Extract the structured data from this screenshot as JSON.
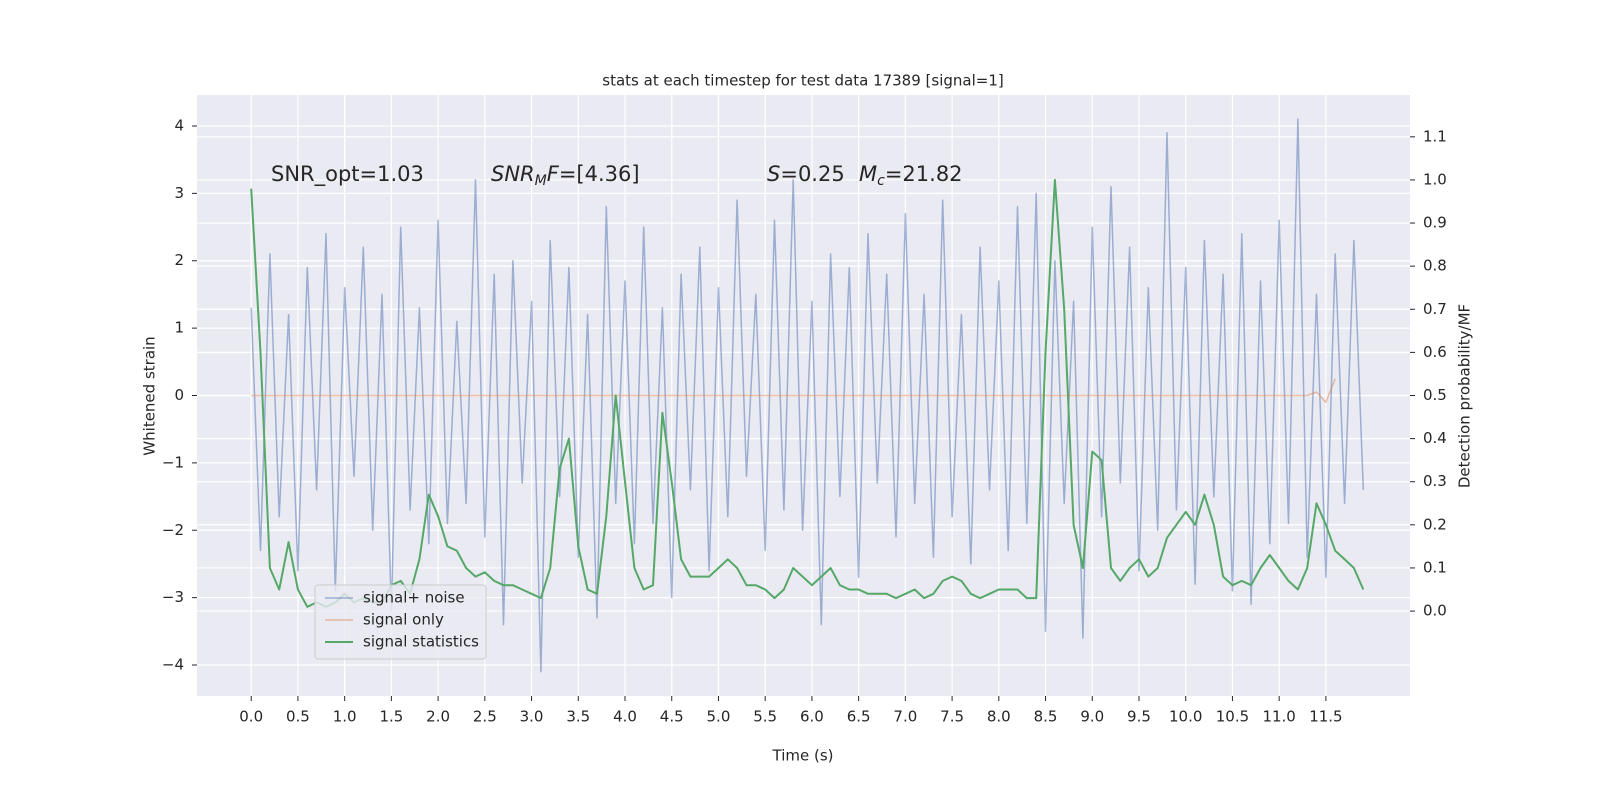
{
  "chart_data": {
    "type": "line",
    "title": "stats at each timestep for test data 17389 [signal=1]",
    "xlabel": "Time (s)",
    "ylabel": "Whitened strain",
    "y2label": "Detection probability/MF",
    "annotations": [
      "SNR_opt=1.03",
      {
        "main": "SNR",
        "sub": "M",
        "after": "F",
        "tail": "=[4.36]"
      },
      {
        "main": "S",
        "tail": "=0.25"
      },
      {
        "main": "M",
        "sub": "c",
        "tail": "=21.82"
      }
    ],
    "legend": "lower left",
    "grid": true,
    "xlim": [
      -0.58,
      12.4
    ],
    "ylim": [
      -4.46,
      4.46
    ],
    "y2lim": [
      -0.197,
      1.197
    ],
    "xticks": [
      {
        "value": 0,
        "label": "0.0"
      },
      0.5,
      {
        "value": 1,
        "label": "1.0"
      },
      1.5,
      {
        "value": 2,
        "label": "2.0"
      },
      2.5,
      {
        "value": 3,
        "label": "3.0"
      },
      3.5,
      {
        "value": 4,
        "label": "4.0"
      },
      4.5,
      {
        "value": 5,
        "label": "5.0"
      },
      5.5,
      {
        "value": 6,
        "label": "6.0"
      },
      6.5,
      {
        "value": 7,
        "label": "7.0"
      },
      7.5,
      {
        "value": 8,
        "label": "8.0"
      },
      8.5,
      {
        "value": 9,
        "label": "9.0"
      },
      9.5,
      {
        "value": 10,
        "label": "10.0"
      },
      10.5,
      {
        "value": 11,
        "label": "11.0"
      },
      11.5
    ],
    "yticks": [
      {
        "value": -4,
        "label": "−4"
      },
      {
        "value": -3,
        "label": "−3"
      },
      {
        "value": -2,
        "label": "−2"
      },
      {
        "value": -1,
        "label": "−1"
      },
      0,
      1,
      2,
      3,
      4
    ],
    "y2ticks": [
      {
        "value": 0,
        "label": "0.0"
      },
      0.1,
      0.2,
      0.3,
      0.4,
      0.5,
      0.6,
      0.7,
      0.8,
      0.9,
      {
        "value": 1,
        "label": "1.0"
      },
      1.1
    ],
    "x": [
      0,
      0.1,
      0.2,
      0.3,
      0.4,
      0.5,
      0.6,
      0.7,
      0.8,
      0.9,
      1,
      1.1,
      1.2,
      1.3,
      1.4,
      1.5,
      1.6,
      1.7,
      1.8,
      1.9,
      2,
      2.1,
      2.2,
      2.3,
      2.4,
      2.5,
      2.6,
      2.7,
      2.8,
      2.9,
      3,
      3.1,
      3.2,
      3.3,
      3.4,
      3.5,
      3.6,
      3.7,
      3.8,
      3.9,
      4,
      4.1,
      4.2,
      4.3,
      4.4,
      4.5,
      4.6,
      4.7,
      4.8,
      4.9,
      5,
      5.1,
      5.2,
      5.3,
      5.4,
      5.5,
      5.6,
      5.7,
      5.8,
      5.9,
      6,
      6.1,
      6.2,
      6.3,
      6.4,
      6.5,
      6.6,
      6.7,
      6.8,
      6.9,
      7,
      7.1,
      7.2,
      7.3,
      7.4,
      7.5,
      7.6,
      7.7,
      7.8,
      7.9,
      8,
      8.1,
      8.2,
      8.3,
      8.4,
      8.5,
      8.6,
      8.7,
      8.8,
      8.9,
      9,
      9.1,
      9.2,
      9.3,
      9.4,
      9.5,
      9.6,
      9.7,
      9.8,
      9.9,
      10,
      10.1,
      10.2,
      10.3,
      10.4,
      10.5,
      10.6,
      10.7,
      10.8,
      10.9,
      11,
      11.1,
      11.2,
      11.3,
      11.4,
      11.5,
      11.6,
      11.7,
      11.8,
      11.9
    ],
    "series": [
      {
        "name": "signal+ noise",
        "color": "#4c72b0",
        "values": [
          1.3,
          -2.3,
          2.1,
          -1.8,
          1.2,
          -2.6,
          1.9,
          -1.4,
          2.4,
          -2.9,
          1.6,
          -1.2,
          2.2,
          -2.0,
          1.5,
          -3.2,
          2.5,
          -1.7,
          1.3,
          -2.2,
          2.6,
          -1.9,
          1.1,
          -1.6,
          3.2,
          -2.1,
          1.8,
          -3.4,
          2.0,
          -1.3,
          1.4,
          -4.1,
          2.3,
          -1.5,
          1.9,
          -2.4,
          1.2,
          -3.3,
          2.8,
          -1.6,
          1.7,
          -2.2,
          2.5,
          -1.9,
          1.3,
          -3.0,
          1.8,
          -1.4,
          2.2,
          -2.6,
          1.6,
          -1.8,
          2.9,
          -1.2,
          1.5,
          -2.3,
          2.6,
          -1.7,
          3.2,
          -2.0,
          1.4,
          -3.4,
          2.1,
          -1.5,
          1.9,
          -2.7,
          2.4,
          -1.3,
          1.8,
          -2.1,
          2.7,
          -1.6,
          1.5,
          -2.4,
          2.9,
          -1.8,
          1.2,
          -2.5,
          2.2,
          -1.4,
          1.7,
          -2.3,
          2.8,
          -1.9,
          3.0,
          -3.5,
          2.0,
          -1.6,
          1.4,
          -3.6,
          2.5,
          -1.8,
          3.1,
          -1.3,
          2.2,
          -2.6,
          1.6,
          -2.0,
          3.9,
          -1.7,
          1.9,
          -2.8,
          2.3,
          -1.5,
          1.8,
          -2.9,
          2.4,
          -3.1,
          1.7,
          -2.2,
          2.6,
          -1.9,
          4.1,
          -2.4,
          1.5,
          -2.7,
          2.1,
          -1.6,
          2.3,
          -1.4
        ]
      },
      {
        "name": "signal only",
        "color": "#dd8452",
        "values": [
          0,
          0,
          0,
          0,
          0,
          0,
          0,
          0,
          0,
          0,
          0,
          0,
          0,
          0,
          0,
          0,
          0,
          0,
          0,
          0,
          0,
          0,
          0,
          0,
          0,
          0,
          0,
          0,
          0,
          0,
          0,
          0,
          0,
          0,
          0,
          0,
          0,
          0,
          0,
          0,
          0,
          0,
          0,
          0,
          0,
          0,
          0,
          0,
          0,
          0,
          0,
          0,
          0,
          0,
          0,
          0,
          0,
          0,
          0,
          0,
          0,
          0,
          0,
          0,
          0,
          0,
          0,
          0,
          0,
          0,
          0,
          0,
          0,
          0,
          0,
          0,
          0,
          0,
          0,
          0,
          0,
          0,
          0,
          0,
          0,
          0,
          0,
          0,
          0,
          0,
          0,
          0,
          0,
          0,
          0,
          0,
          0,
          0,
          0,
          0,
          0,
          0,
          0,
          0,
          0,
          0,
          0,
          0,
          0,
          0,
          0,
          0,
          0,
          0,
          0.05,
          -0.1,
          0.25,
          null,
          null,
          null
        ]
      },
      {
        "name": "signal statistics",
        "color": "#55a868",
        "axis": "y2",
        "values": [
          0.98,
          0.6,
          0.1,
          0.05,
          0.16,
          0.05,
          0.01,
          0.02,
          0.01,
          0.02,
          0.04,
          0.02,
          0.03,
          0.02,
          0.02,
          0.06,
          0.07,
          0.04,
          0.12,
          0.27,
          0.22,
          0.15,
          0.14,
          0.1,
          0.08,
          0.09,
          0.07,
          0.06,
          0.06,
          0.05,
          0.04,
          0.03,
          0.1,
          0.33,
          0.4,
          0.15,
          0.05,
          0.04,
          0.22,
          0.5,
          0.3,
          0.1,
          0.05,
          0.06,
          0.46,
          0.3,
          0.12,
          0.08,
          0.08,
          0.08,
          0.1,
          0.12,
          0.1,
          0.06,
          0.06,
          0.05,
          0.03,
          0.05,
          0.1,
          0.08,
          0.06,
          0.08,
          0.1,
          0.06,
          0.05,
          0.05,
          0.04,
          0.04,
          0.04,
          0.03,
          0.04,
          0.05,
          0.03,
          0.04,
          0.07,
          0.08,
          0.07,
          0.04,
          0.03,
          0.04,
          0.05,
          0.05,
          0.05,
          0.03,
          0.03,
          0.6,
          1.0,
          0.7,
          0.2,
          0.1,
          0.37,
          0.35,
          0.1,
          0.07,
          0.1,
          0.12,
          0.08,
          0.1,
          0.17,
          0.2,
          0.23,
          0.2,
          0.27,
          0.2,
          0.08,
          0.06,
          0.07,
          0.06,
          0.1,
          0.13,
          0.1,
          0.07,
          0.05,
          0.1,
          0.25,
          0.2,
          0.14,
          0.12,
          0.1,
          0.05
        ]
      }
    ]
  }
}
